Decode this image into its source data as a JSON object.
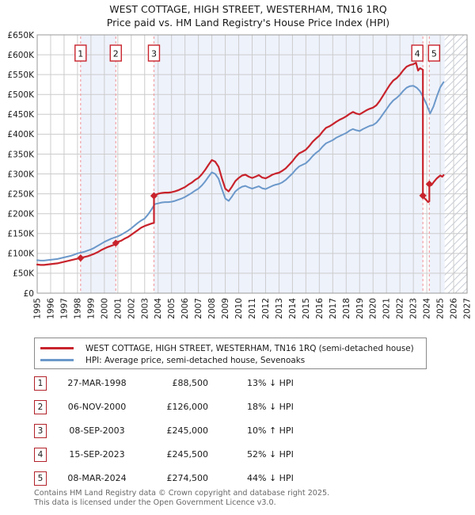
{
  "title": "WEST COTTAGE, HIGH STREET, WESTERHAM, TN16 1RQ",
  "subtitle": "Price paid vs. HM Land Registry's House Price Index (HPI)",
  "legend": {
    "entries": [
      {
        "label": "WEST COTTAGE, HIGH STREET, WESTERHAM, TN16 1RQ (semi-detached house)",
        "color": "#c8232c"
      },
      {
        "label": "HPI: Average price, semi-detached house, Sevenoaks",
        "color": "#6b98ca"
      }
    ]
  },
  "sales": [
    {
      "num": "1",
      "date": "27-MAR-1998",
      "price": "£88,500",
      "hpi": "13% ↓ HPI"
    },
    {
      "num": "2",
      "date": "06-NOV-2000",
      "price": "£126,000",
      "hpi": "18% ↓ HPI"
    },
    {
      "num": "3",
      "date": "08-SEP-2003",
      "price": "£245,000",
      "hpi": "10% ↑ HPI"
    },
    {
      "num": "4",
      "date": "15-SEP-2023",
      "price": "£245,500",
      "hpi": "52% ↓ HPI"
    },
    {
      "num": "5",
      "date": "08-MAR-2024",
      "price": "£274,500",
      "hpi": "44% ↓ HPI"
    }
  ],
  "footer": {
    "line1": "Contains HM Land Registry data © Crown copyright and database right 2025.",
    "line2": "This data is licensed under the Open Government Licence v3.0."
  },
  "chart_data": {
    "type": "line",
    "title": "WEST COTTAGE, HIGH STREET, WESTERHAM, TN16 1RQ",
    "subtitle": "Price paid vs. HM Land Registry's House Price Index (HPI)",
    "x_axis": {
      "range": [
        1995,
        2027
      ],
      "tick_labels": [
        "1995",
        "1996",
        "1997",
        "1998",
        "1999",
        "2000",
        "2001",
        "2002",
        "2003",
        "2004",
        "2005",
        "2006",
        "2007",
        "2008",
        "2009",
        "2010",
        "2011",
        "2012",
        "2013",
        "2014",
        "2015",
        "2016",
        "2017",
        "2018",
        "2019",
        "2020",
        "2021",
        "2022",
        "2023",
        "2024",
        "2025",
        "2026",
        "2027"
      ]
    },
    "y_axis": {
      "max_k": 650,
      "tick_step_k": 50,
      "tick_labels": [
        "£0",
        "£50K",
        "£100K",
        "£150K",
        "£200K",
        "£250K",
        "£300K",
        "£350K",
        "£400K",
        "£450K",
        "£500K",
        "£550K",
        "£600K",
        "£650K"
      ]
    },
    "colors": {
      "red": "#c8232c",
      "blue": "#6b98ca",
      "band": "#eef2fb",
      "dashed": "#f2a0a4",
      "grid": "#cccccc",
      "frame": "#999999",
      "hatch": "#c9cdd6"
    },
    "owned_bands": [
      [
        1998.23,
        2000.85
      ],
      [
        2003.69,
        2023.71
      ],
      [
        2024.19,
        2025.33
      ]
    ],
    "hatch_from_x": 2025.33,
    "sale_events": [
      {
        "n": "1",
        "x": 1998.23,
        "y_k": 88.5,
        "label_dx": 0
      },
      {
        "n": "2",
        "x": 2000.85,
        "y_k": 126,
        "label_dx": 0
      },
      {
        "n": "3",
        "x": 2003.69,
        "y_k": 245,
        "label_dx": 0
      },
      {
        "n": "4",
        "x": 2023.71,
        "y_k": 245.5,
        "label_dx": -7
      },
      {
        "n": "5",
        "x": 2024.19,
        "y_k": 274.5,
        "label_dx": 6
      }
    ],
    "series": [
      {
        "name": "HPI: Average price, semi-detached house, Sevenoaks",
        "color": "#6b98ca",
        "width": 2,
        "y_unit": "£1000",
        "points": [
          [
            1995.0,
            83
          ],
          [
            1995.25,
            82
          ],
          [
            1995.5,
            82
          ],
          [
            1995.75,
            83
          ],
          [
            1996.0,
            84
          ],
          [
            1996.25,
            85
          ],
          [
            1996.5,
            86
          ],
          [
            1996.75,
            88
          ],
          [
            1997.0,
            90
          ],
          [
            1997.25,
            92
          ],
          [
            1997.5,
            94
          ],
          [
            1997.75,
            97
          ],
          [
            1998.0,
            100
          ],
          [
            1998.25,
            102
          ],
          [
            1998.5,
            104
          ],
          [
            1998.75,
            107
          ],
          [
            1999.0,
            110
          ],
          [
            1999.25,
            114
          ],
          [
            1999.5,
            119
          ],
          [
            1999.75,
            124
          ],
          [
            2000.0,
            129
          ],
          [
            2000.25,
            133
          ],
          [
            2000.5,
            137
          ],
          [
            2000.75,
            140
          ],
          [
            2001.0,
            143
          ],
          [
            2001.25,
            147
          ],
          [
            2001.5,
            152
          ],
          [
            2001.75,
            157
          ],
          [
            2002.0,
            163
          ],
          [
            2002.25,
            170
          ],
          [
            2002.5,
            177
          ],
          [
            2002.75,
            183
          ],
          [
            2003.0,
            188
          ],
          [
            2003.25,
            198
          ],
          [
            2003.5,
            210
          ],
          [
            2003.75,
            224
          ],
          [
            2004.0,
            226
          ],
          [
            2004.25,
            228
          ],
          [
            2004.5,
            229
          ],
          [
            2004.75,
            229
          ],
          [
            2005.0,
            230
          ],
          [
            2005.25,
            232
          ],
          [
            2005.5,
            235
          ],
          [
            2005.75,
            238
          ],
          [
            2006.0,
            242
          ],
          [
            2006.25,
            247
          ],
          [
            2006.5,
            252
          ],
          [
            2006.75,
            258
          ],
          [
            2007.0,
            263
          ],
          [
            2007.25,
            271
          ],
          [
            2007.5,
            281
          ],
          [
            2007.75,
            293
          ],
          [
            2008.0,
            304
          ],
          [
            2008.25,
            300
          ],
          [
            2008.5,
            288
          ],
          [
            2008.75,
            262
          ],
          [
            2009.0,
            238
          ],
          [
            2009.25,
            232
          ],
          [
            2009.5,
            243
          ],
          [
            2009.75,
            256
          ],
          [
            2010.0,
            263
          ],
          [
            2010.25,
            268
          ],
          [
            2010.5,
            270
          ],
          [
            2010.75,
            266
          ],
          [
            2011.0,
            263
          ],
          [
            2011.25,
            266
          ],
          [
            2011.5,
            269
          ],
          [
            2011.75,
            264
          ],
          [
            2012.0,
            262
          ],
          [
            2012.25,
            266
          ],
          [
            2012.5,
            270
          ],
          [
            2012.75,
            273
          ],
          [
            2013.0,
            275
          ],
          [
            2013.25,
            279
          ],
          [
            2013.5,
            285
          ],
          [
            2013.75,
            293
          ],
          [
            2014.0,
            301
          ],
          [
            2014.25,
            311
          ],
          [
            2014.5,
            319
          ],
          [
            2014.75,
            323
          ],
          [
            2015.0,
            327
          ],
          [
            2015.25,
            335
          ],
          [
            2015.5,
            345
          ],
          [
            2015.75,
            353
          ],
          [
            2016.0,
            359
          ],
          [
            2016.25,
            369
          ],
          [
            2016.5,
            377
          ],
          [
            2016.75,
            381
          ],
          [
            2017.0,
            385
          ],
          [
            2017.25,
            391
          ],
          [
            2017.5,
            395
          ],
          [
            2017.75,
            399
          ],
          [
            2018.0,
            403
          ],
          [
            2018.25,
            409
          ],
          [
            2018.5,
            413
          ],
          [
            2018.75,
            410
          ],
          [
            2019.0,
            408
          ],
          [
            2019.25,
            413
          ],
          [
            2019.5,
            417
          ],
          [
            2019.75,
            421
          ],
          [
            2020.0,
            423
          ],
          [
            2020.25,
            429
          ],
          [
            2020.5,
            439
          ],
          [
            2020.75,
            451
          ],
          [
            2021.0,
            463
          ],
          [
            2021.25,
            475
          ],
          [
            2021.5,
            485
          ],
          [
            2021.75,
            491
          ],
          [
            2022.0,
            499
          ],
          [
            2022.25,
            509
          ],
          [
            2022.5,
            517
          ],
          [
            2022.75,
            521
          ],
          [
            2023.0,
            522
          ],
          [
            2023.25,
            517
          ],
          [
            2023.5,
            508
          ],
          [
            2023.75,
            492
          ],
          [
            2024.0,
            474
          ],
          [
            2024.25,
            452
          ],
          [
            2024.5,
            470
          ],
          [
            2024.75,
            495
          ],
          [
            2025.0,
            518
          ],
          [
            2025.25,
            531
          ]
        ]
      },
      {
        "name": "WEST COTTAGE, HIGH STREET, WESTERHAM, TN16 1RQ (semi-detached house)",
        "color": "#c8232c",
        "width": 2.2,
        "y_unit": "£1000",
        "points": [
          [
            1995.0,
            72
          ],
          [
            1995.25,
            71
          ],
          [
            1995.5,
            71
          ],
          [
            1995.75,
            72
          ],
          [
            1996.0,
            73
          ],
          [
            1996.25,
            74
          ],
          [
            1996.5,
            75
          ],
          [
            1996.75,
            77
          ],
          [
            1997.0,
            79
          ],
          [
            1997.25,
            81
          ],
          [
            1997.5,
            83
          ],
          [
            1997.75,
            85
          ],
          [
            1998.0,
            87
          ],
          [
            1998.23,
            88.5
          ],
          [
            1998.5,
            91
          ],
          [
            1998.75,
            93
          ],
          [
            1999.0,
            96
          ],
          [
            1999.25,
            99
          ],
          [
            1999.5,
            103
          ],
          [
            1999.75,
            108
          ],
          [
            2000.0,
            112
          ],
          [
            2000.25,
            116
          ],
          [
            2000.5,
            119
          ],
          [
            2000.75,
            122
          ],
          [
            2000.85,
            126
          ],
          [
            2001.0,
            129
          ],
          [
            2001.25,
            132
          ],
          [
            2001.5,
            137
          ],
          [
            2001.75,
            141
          ],
          [
            2002.0,
            147
          ],
          [
            2002.25,
            153
          ],
          [
            2002.5,
            159
          ],
          [
            2002.75,
            165
          ],
          [
            2003.0,
            169
          ],
          [
            2003.25,
            172
          ],
          [
            2003.5,
            175
          ],
          [
            2003.69,
            177
          ],
          [
            2003.69,
            245
          ],
          [
            2003.75,
            247
          ],
          [
            2004.0,
            250
          ],
          [
            2004.25,
            252
          ],
          [
            2004.5,
            253
          ],
          [
            2004.75,
            253
          ],
          [
            2005.0,
            254
          ],
          [
            2005.25,
            256
          ],
          [
            2005.5,
            259
          ],
          [
            2005.75,
            263
          ],
          [
            2006.0,
            267
          ],
          [
            2006.25,
            273
          ],
          [
            2006.5,
            278
          ],
          [
            2006.75,
            285
          ],
          [
            2007.0,
            290
          ],
          [
            2007.25,
            299
          ],
          [
            2007.5,
            310
          ],
          [
            2007.75,
            323
          ],
          [
            2008.0,
            335
          ],
          [
            2008.25,
            331
          ],
          [
            2008.5,
            318
          ],
          [
            2008.75,
            289
          ],
          [
            2009.0,
            263
          ],
          [
            2009.25,
            256
          ],
          [
            2009.5,
            268
          ],
          [
            2009.75,
            282
          ],
          [
            2010.0,
            290
          ],
          [
            2010.25,
            296
          ],
          [
            2010.5,
            298
          ],
          [
            2010.75,
            293
          ],
          [
            2011.0,
            290
          ],
          [
            2011.25,
            293
          ],
          [
            2011.5,
            297
          ],
          [
            2011.75,
            291
          ],
          [
            2012.0,
            289
          ],
          [
            2012.25,
            293
          ],
          [
            2012.5,
            298
          ],
          [
            2012.75,
            301
          ],
          [
            2013.0,
            303
          ],
          [
            2013.25,
            308
          ],
          [
            2013.5,
            314
          ],
          [
            2013.75,
            323
          ],
          [
            2014.0,
            332
          ],
          [
            2014.25,
            343
          ],
          [
            2014.5,
            352
          ],
          [
            2014.75,
            356
          ],
          [
            2015.0,
            361
          ],
          [
            2015.25,
            370
          ],
          [
            2015.5,
            381
          ],
          [
            2015.75,
            389
          ],
          [
            2016.0,
            396
          ],
          [
            2016.25,
            407
          ],
          [
            2016.5,
            416
          ],
          [
            2016.75,
            420
          ],
          [
            2017.0,
            425
          ],
          [
            2017.25,
            431
          ],
          [
            2017.5,
            436
          ],
          [
            2017.75,
            440
          ],
          [
            2018.0,
            445
          ],
          [
            2018.25,
            451
          ],
          [
            2018.5,
            456
          ],
          [
            2018.75,
            452
          ],
          [
            2019.0,
            450
          ],
          [
            2019.25,
            455
          ],
          [
            2019.5,
            460
          ],
          [
            2019.75,
            464
          ],
          [
            2020.0,
            467
          ],
          [
            2020.25,
            473
          ],
          [
            2020.5,
            484
          ],
          [
            2020.75,
            497
          ],
          [
            2021.0,
            511
          ],
          [
            2021.25,
            524
          ],
          [
            2021.5,
            535
          ],
          [
            2021.75,
            541
          ],
          [
            2022.0,
            550
          ],
          [
            2022.25,
            561
          ],
          [
            2022.5,
            570
          ],
          [
            2022.75,
            574
          ],
          [
            2023.0,
            576
          ],
          [
            2023.2,
            580
          ],
          [
            2023.35,
            560
          ],
          [
            2023.5,
            566
          ],
          [
            2023.71,
            562
          ],
          [
            2023.71,
            245.5
          ],
          [
            2023.85,
            238
          ],
          [
            2024.0,
            233
          ],
          [
            2024.1,
            229
          ],
          [
            2024.19,
            231
          ],
          [
            2024.19,
            274.5
          ],
          [
            2024.35,
            272
          ],
          [
            2024.5,
            279
          ],
          [
            2024.75,
            289
          ],
          [
            2025.0,
            296
          ],
          [
            2025.15,
            293
          ],
          [
            2025.25,
            297
          ]
        ]
      }
    ]
  }
}
